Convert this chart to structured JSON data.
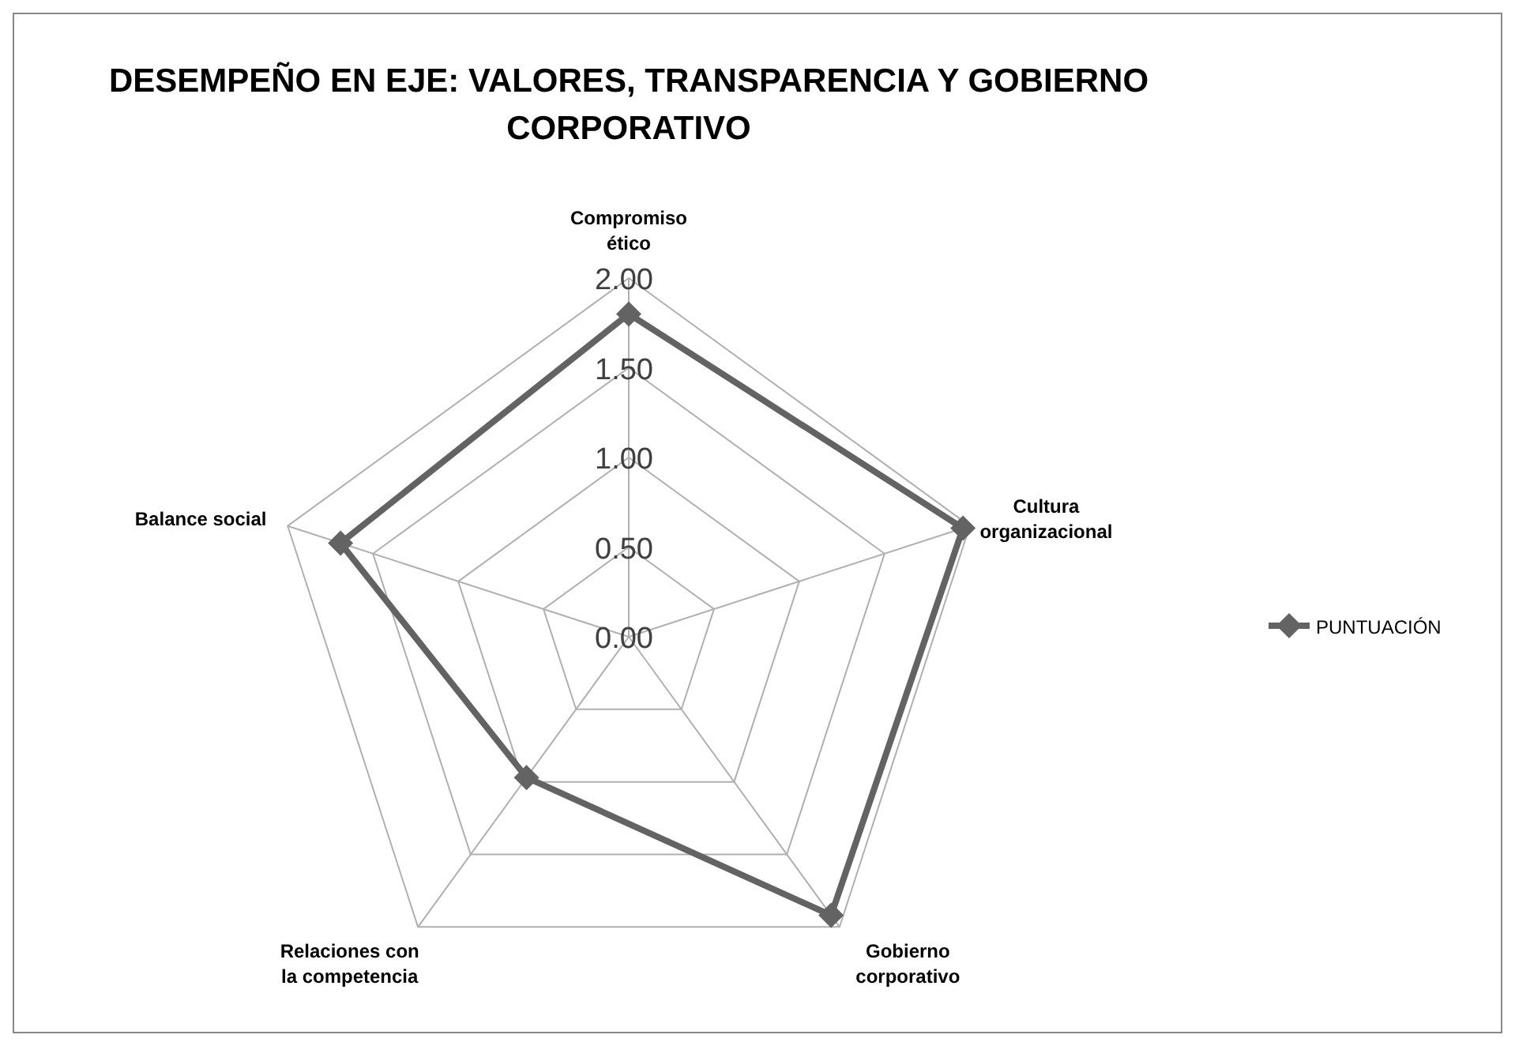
{
  "chart_data": {
    "type": "radar",
    "title": "DESEMPEÑO EN EJE: VALORES, TRANSPARENCIA Y GOBIERNO CORPORATIVO",
    "categories": [
      "Compromiso ético",
      "Cultura organizacional",
      "Gobierno corporativo",
      "Relaciones con la competencia",
      "Balance social"
    ],
    "series": [
      {
        "name": "PUNTUACIÓN",
        "color": "#636363",
        "values": [
          1.8,
          1.96,
          1.92,
          0.97,
          1.69
        ]
      }
    ],
    "ylim": [
      0,
      2
    ],
    "yticks": [
      {
        "value": 0,
        "label": "0.00"
      },
      {
        "value": 0.5,
        "label": "0.50"
      },
      {
        "value": 1,
        "label": "1.00"
      },
      {
        "value": 1.5,
        "label": "1.50"
      },
      {
        "value": 2,
        "label": "2.00"
      }
    ],
    "grid": true,
    "legend": "right",
    "marker": "diamond",
    "line_style": "solid"
  }
}
